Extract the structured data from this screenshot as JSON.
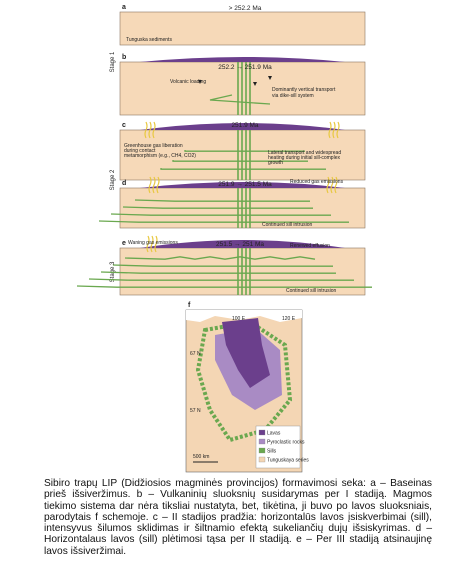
{
  "stages": [
    "Stage 1",
    "Stage 2",
    "Stage 3"
  ],
  "panels": [
    {
      "letter": "a",
      "age": "> 252.2 Ma",
      "labels": [
        "Tunguska sediments"
      ]
    },
    {
      "letter": "b",
      "age": "252.2 → 251.9 Ma",
      "labels": [
        "Volcanic loading",
        "Dominantly vertical transport",
        "via dike-sill system"
      ]
    },
    {
      "letter": "c",
      "age": "251.9 Ma",
      "labels": [
        "Greenhouse gas liberation",
        "during contact",
        "metamorphism (e.g., CH4, CO2)",
        "Lateral transport and widespread",
        "heating during initial sill-complex",
        "growth"
      ]
    },
    {
      "letter": "d",
      "age": "251.9 → 251.5 Ma",
      "labels": [
        "Reduced gas emissions",
        "Continued sill intrusion"
      ]
    },
    {
      "letter": "e",
      "age": "251.5 → 251 Ma",
      "labels": [
        "Waning gas emissions",
        "Renewed effusion",
        "Continued sill intrusion"
      ]
    }
  ],
  "map": {
    "letter": "f",
    "lon": [
      "100 E",
      "120 E"
    ],
    "lat": [
      "67 N",
      "57 N"
    ],
    "scale": "500 km",
    "legend": [
      "Lavas",
      "Pyroclastic rocks",
      "Sills",
      "Tunguskaya series"
    ]
  },
  "caption": "Sibiro trapų LIP (Didžiosios magminės provincijos) formavimosi seka: a – Baseinas prieš išsiveržimus. b – Vulkaninių sluoksnių susidarymas per I stadiją. Magmos tiekimo sistema dar nėra tiksliai nustatyta, bet, tikėtina, ji buvo po lavos sluoksniais, parodytais f schemoje. c – II stadijos pradžia: horizontalūs lavos įsiskverbimai (sill), intensyvus šilumos sklidimas ir šiltnamio efektą sukeliančių dujų išsiskyrimas. d – Horizontalaus lavos (sill) plėtimosi tąsa per II stadiją. e – Per III stadiją atsinaujinę lavos išsiveržimai."
}
